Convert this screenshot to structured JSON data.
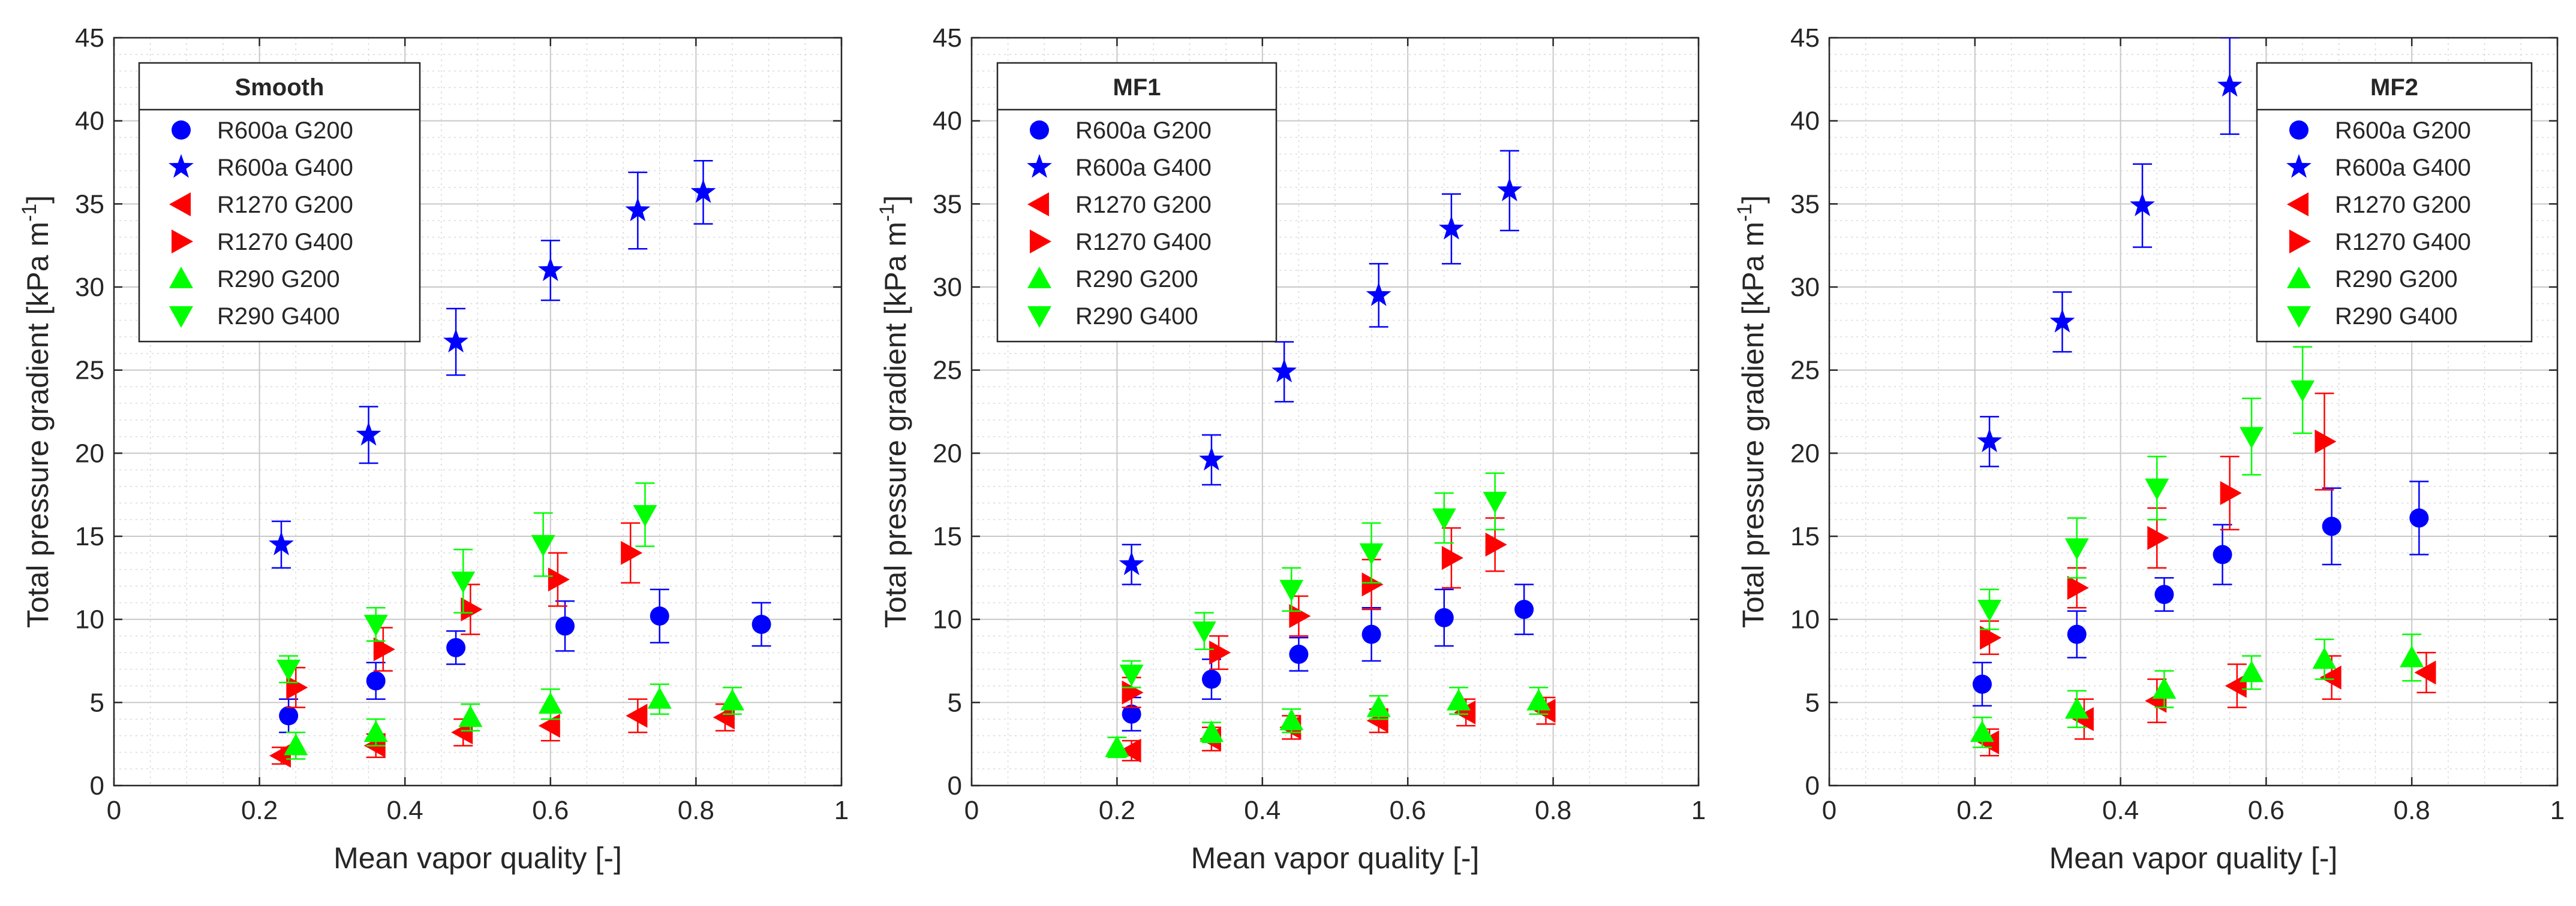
{
  "chart_data": [
    {
      "type": "scatter",
      "title": "Smooth",
      "xlabel": "Mean vapor quality [-]",
      "ylabel": "Total pressure gradient [kPa m",
      "ylabel_sup": "-1",
      "ylabel_end": "]",
      "xlim": [
        0,
        1
      ],
      "ylim": [
        0,
        45
      ],
      "xticks": [
        "0",
        "0.2",
        "0.4",
        "0.6",
        "0.8",
        "1"
      ],
      "yticks": [
        "0",
        "5",
        "10",
        "15",
        "20",
        "25",
        "30",
        "35",
        "40",
        "45"
      ],
      "grid": true,
      "legend_position": "top-left",
      "series": [
        {
          "name": "R600a G200",
          "color": "#0000ff",
          "marker": "circle",
          "x": [
            0.24,
            0.36,
            0.47,
            0.62,
            0.75,
            0.89
          ],
          "y": [
            4.2,
            6.3,
            8.3,
            9.6,
            10.2,
            9.7
          ],
          "err": [
            1.0,
            1.1,
            1.0,
            1.5,
            1.6,
            1.3
          ]
        },
        {
          "name": "R600a G400",
          "color": "#0000ff",
          "marker": "star",
          "x": [
            0.23,
            0.35,
            0.47,
            0.6,
            0.72,
            0.81
          ],
          "y": [
            14.5,
            21.1,
            26.7,
            31.0,
            34.6,
            35.7
          ],
          "err": [
            1.4,
            1.7,
            2.0,
            1.8,
            2.3,
            1.9
          ]
        },
        {
          "name": "R1270 G200",
          "color": "#ff0000",
          "marker": "triangle-left",
          "x": [
            0.23,
            0.36,
            0.48,
            0.6,
            0.72,
            0.84
          ],
          "y": [
            1.8,
            2.4,
            3.2,
            3.6,
            4.2,
            4.1
          ],
          "err": [
            0.5,
            0.7,
            0.8,
            0.9,
            1.0,
            0.8
          ]
        },
        {
          "name": "R1270 G400",
          "color": "#ff0000",
          "marker": "triangle-right",
          "x": [
            0.25,
            0.37,
            0.49,
            0.61,
            0.71
          ],
          "y": [
            5.9,
            8.2,
            10.6,
            12.4,
            14.0
          ],
          "err": [
            1.2,
            1.3,
            1.5,
            1.6,
            1.8
          ]
        },
        {
          "name": "R290 G200",
          "color": "#00ff00",
          "marker": "triangle-up",
          "x": [
            0.25,
            0.36,
            0.49,
            0.6,
            0.75,
            0.85
          ],
          "y": [
            2.4,
            3.2,
            4.1,
            4.9,
            5.2,
            5.1
          ],
          "err": [
            0.8,
            0.8,
            0.8,
            0.9,
            0.9,
            0.8
          ]
        },
        {
          "name": "R290 G400",
          "color": "#00ff00",
          "marker": "triangle-down",
          "x": [
            0.24,
            0.36,
            0.48,
            0.59,
            0.73
          ],
          "y": [
            7.0,
            9.7,
            12.3,
            14.5,
            16.3
          ],
          "err": [
            0.8,
            1.0,
            1.9,
            1.9,
            1.9
          ]
        }
      ]
    },
    {
      "type": "scatter",
      "title": "MF1",
      "xlabel": "Mean vapor quality [-]",
      "ylabel": "Total pressure gradient [kPa m",
      "ylabel_sup": "-1",
      "ylabel_end": "]",
      "xlim": [
        0,
        1
      ],
      "ylim": [
        0,
        45
      ],
      "xticks": [
        "0",
        "0.2",
        "0.4",
        "0.6",
        "0.8",
        "1"
      ],
      "yticks": [
        "0",
        "5",
        "10",
        "15",
        "20",
        "25",
        "30",
        "35",
        "40",
        "45"
      ],
      "grid": true,
      "legend_position": "top-left",
      "series": [
        {
          "name": "R600a G200",
          "color": "#0000ff",
          "marker": "circle",
          "x": [
            0.22,
            0.33,
            0.45,
            0.55,
            0.65,
            0.76
          ],
          "y": [
            4.3,
            6.4,
            7.9,
            9.1,
            10.1,
            10.6
          ],
          "err": [
            1.0,
            1.2,
            1.0,
            1.6,
            1.7,
            1.5
          ]
        },
        {
          "name": "R600a G400",
          "color": "#0000ff",
          "marker": "star",
          "x": [
            0.22,
            0.33,
            0.43,
            0.56,
            0.66,
            0.74
          ],
          "y": [
            13.3,
            19.6,
            24.9,
            29.5,
            33.5,
            35.8
          ],
          "err": [
            1.2,
            1.5,
            1.8,
            1.9,
            2.1,
            2.4
          ]
        },
        {
          "name": "R1270 G200",
          "color": "#ff0000",
          "marker": "triangle-left",
          "x": [
            0.22,
            0.33,
            0.44,
            0.56,
            0.68,
            0.79
          ],
          "y": [
            2.1,
            2.8,
            3.5,
            3.9,
            4.4,
            4.5
          ],
          "err": [
            0.6,
            0.7,
            0.7,
            0.7,
            0.8,
            0.8
          ]
        },
        {
          "name": "R1270 G400",
          "color": "#ff0000",
          "marker": "triangle-right",
          "x": [
            0.22,
            0.34,
            0.45,
            0.55,
            0.66,
            0.72
          ],
          "y": [
            5.6,
            8.0,
            10.2,
            12.1,
            13.7,
            14.5
          ],
          "err": [
            0.9,
            1.0,
            1.2,
            1.5,
            1.8,
            1.6
          ]
        },
        {
          "name": "R290 G200",
          "color": "#00ff00",
          "marker": "triangle-up",
          "x": [
            0.2,
            0.33,
            0.44,
            0.56,
            0.67,
            0.78
          ],
          "y": [
            2.3,
            3.2,
            3.9,
            4.7,
            5.1,
            5.1
          ],
          "err": [
            0.6,
            0.6,
            0.7,
            0.7,
            0.8,
            0.8
          ]
        },
        {
          "name": "R290 G400",
          "color": "#00ff00",
          "marker": "triangle-down",
          "x": [
            0.22,
            0.32,
            0.44,
            0.55,
            0.65,
            0.72
          ],
          "y": [
            6.7,
            9.3,
            11.8,
            14.0,
            16.1,
            17.1
          ],
          "err": [
            0.8,
            1.1,
            1.3,
            1.8,
            1.5,
            1.7
          ]
        }
      ]
    },
    {
      "type": "scatter",
      "title": "MF2",
      "xlabel": "Mean vapor quality [-]",
      "ylabel": "Total pressure gradient [kPa m",
      "ylabel_sup": "-1",
      "ylabel_end": "]",
      "xlim": [
        0,
        1
      ],
      "ylim": [
        0,
        45
      ],
      "xticks": [
        "0",
        "0.2",
        "0.4",
        "0.6",
        "0.8",
        "1"
      ],
      "yticks": [
        "0",
        "5",
        "10",
        "15",
        "20",
        "25",
        "30",
        "35",
        "40",
        "45"
      ],
      "grid": true,
      "legend_position": "top-right",
      "series": [
        {
          "name": "R600a G200",
          "color": "#0000ff",
          "marker": "circle",
          "x": [
            0.21,
            0.34,
            0.46,
            0.54,
            0.69,
            0.81
          ],
          "y": [
            6.1,
            9.1,
            11.5,
            13.9,
            15.6,
            16.1
          ],
          "err": [
            1.3,
            1.4,
            1.0,
            1.8,
            2.3,
            2.2
          ]
        },
        {
          "name": "R600a G400",
          "color": "#0000ff",
          "marker": "star",
          "x": [
            0.22,
            0.32,
            0.43,
            0.55
          ],
          "y": [
            20.7,
            27.9,
            34.9,
            42.1
          ],
          "err": [
            1.5,
            1.8,
            2.5,
            2.9
          ]
        },
        {
          "name": "R1270 G200",
          "color": "#ff0000",
          "marker": "triangle-left",
          "x": [
            0.22,
            0.35,
            0.45,
            0.56,
            0.69,
            0.82
          ],
          "y": [
            2.6,
            4.0,
            5.1,
            6.0,
            6.5,
            6.8
          ],
          "err": [
            0.8,
            1.2,
            1.3,
            1.3,
            1.3,
            1.2
          ]
        },
        {
          "name": "R1270 G400",
          "color": "#ff0000",
          "marker": "triangle-right",
          "x": [
            0.22,
            0.34,
            0.45,
            0.55,
            0.68
          ],
          "y": [
            8.9,
            11.9,
            14.9,
            17.6,
            20.7
          ],
          "err": [
            1.0,
            1.2,
            1.8,
            2.2,
            2.9
          ]
        },
        {
          "name": "R290 G200",
          "color": "#00ff00",
          "marker": "triangle-up",
          "x": [
            0.21,
            0.34,
            0.46,
            0.58,
            0.68,
            0.8
          ],
          "y": [
            3.2,
            4.6,
            5.8,
            6.8,
            7.6,
            7.7
          ],
          "err": [
            0.9,
            1.1,
            1.1,
            1.0,
            1.2,
            1.4
          ]
        },
        {
          "name": "R290 G400",
          "color": "#00ff00",
          "marker": "triangle-down",
          "x": [
            0.22,
            0.34,
            0.45,
            0.58,
            0.65
          ],
          "y": [
            10.6,
            14.3,
            17.9,
            21.0,
            23.8
          ],
          "err": [
            1.2,
            1.8,
            1.9,
            2.3,
            2.6
          ]
        }
      ]
    }
  ]
}
